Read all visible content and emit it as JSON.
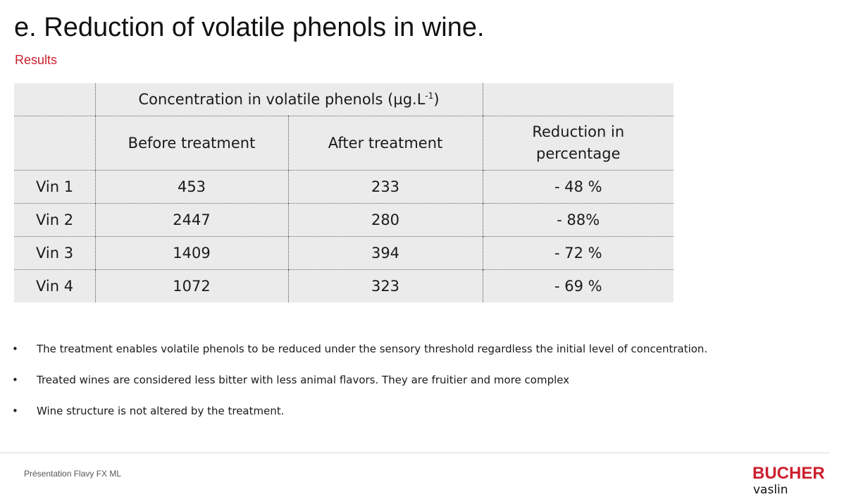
{
  "slide": {
    "title": "e. Reduction of volatile phenols in wine.",
    "subtitle": "Results"
  },
  "table": {
    "concentration_header_prefix": "Concentration in volatile phenols (µg.L",
    "concentration_header_sup": "-1",
    "concentration_header_suffix": ")",
    "col_before": "Before treatment",
    "col_after": "After treatment",
    "col_reduction_line1": "Reduction in",
    "col_reduction_line2": "percentage",
    "rows": [
      {
        "wine": "Vin 1",
        "before": "453",
        "after": "233",
        "reduction": "- 48 %"
      },
      {
        "wine": "Vin 2",
        "before": "2447",
        "after": "280",
        "reduction": "- 88%"
      },
      {
        "wine": "Vin 3",
        "before": "1409",
        "after": "394",
        "reduction": "- 72 %"
      },
      {
        "wine": "Vin 4",
        "before": "1072",
        "after": "323",
        "reduction": "- 69 %"
      }
    ]
  },
  "bullets": [
    "The treatment enables volatile phenols to be reduced under the sensory threshold regardless the initial level of concentration.",
    "Treated wines are considered less bitter with less animal flavors. They are fruitier and more complex",
    "Wine structure is not altered by the treatment."
  ],
  "bullet_symbol": "•",
  "footer": {
    "text": "Présentation Flavy FX ML",
    "logo_brand": "BUCHER",
    "logo_sub": "vaslin"
  },
  "colors": {
    "accent": "#cc1f2d",
    "table_bg": "#ebebeb"
  }
}
